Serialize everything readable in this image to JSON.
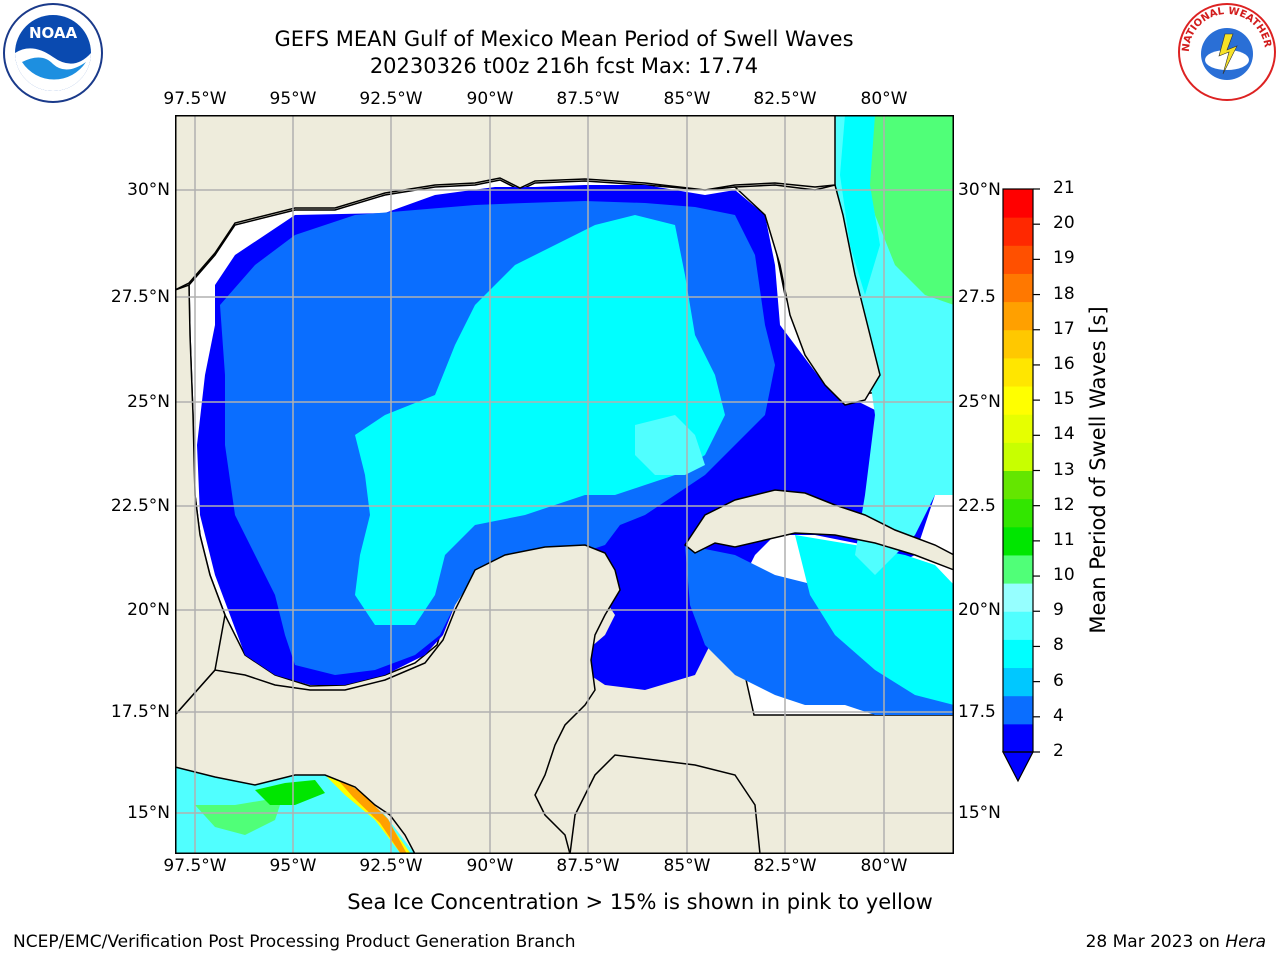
{
  "title": {
    "line1": "GEFS MEAN Gulf of Mexico Mean Period of Swell Waves",
    "line2": "20230326 t00z 216h fcst   Max: 17.74"
  },
  "logos": {
    "noaa_text": "NOAA",
    "nws_ring_text": "NATIONAL WEATHER SERVICE"
  },
  "axes": {
    "lon_labels": [
      "97.5°W",
      "95°W",
      "92.5°W",
      "90°W",
      "87.5°W",
      "85°W",
      "82.5°W",
      "80°W"
    ],
    "lat_labels_left": [
      "30°N",
      "27.5°N",
      "25°N",
      "22.5°N",
      "20°N",
      "17.5°N",
      "15°N"
    ],
    "lat_labels_right": [
      "30°N",
      "27.5",
      "25°N",
      "22.5",
      "20°N",
      "17.5",
      "15°N"
    ],
    "grid": true
  },
  "colorbar": {
    "label": "Mean Period of Swell Waves [s]",
    "ticks": [
      "2",
      "4",
      "6",
      "8",
      "9",
      "10",
      "11",
      "12",
      "13",
      "14",
      "15",
      "16",
      "17",
      "18",
      "19",
      "20",
      "21"
    ],
    "colors": [
      "#0000ff",
      "#0a6eff",
      "#00c8ff",
      "#00ffff",
      "#50ffff",
      "#96ffff",
      "#50ff78",
      "#00e600",
      "#32e600",
      "#64e600",
      "#c8ff00",
      "#e6ff00",
      "#ffff00",
      "#ffe600",
      "#ffc800",
      "#ffa000",
      "#ff7800",
      "#ff5000",
      "#ff2800",
      "#ff0000"
    ]
  },
  "map_colors": {
    "land": "#eeecdc",
    "nodata": "#ffffff",
    "c2": "#0000ff",
    "c4": "#0a6eff",
    "c6": "#00ffff",
    "c8": "#50ffff",
    "c9": "#96ffff",
    "c10": "#50ff78",
    "c11": "#00e600",
    "c16": "#ffff00",
    "c18": "#ffa000"
  },
  "note": "Sea Ice Concentration > 15% is shown in pink to yellow",
  "footer": {
    "left": "NCEP/EMC/Verification Post Processing Product Generation Branch",
    "right_date": "28 Mar 2023 on ",
    "right_host": "Hera"
  }
}
